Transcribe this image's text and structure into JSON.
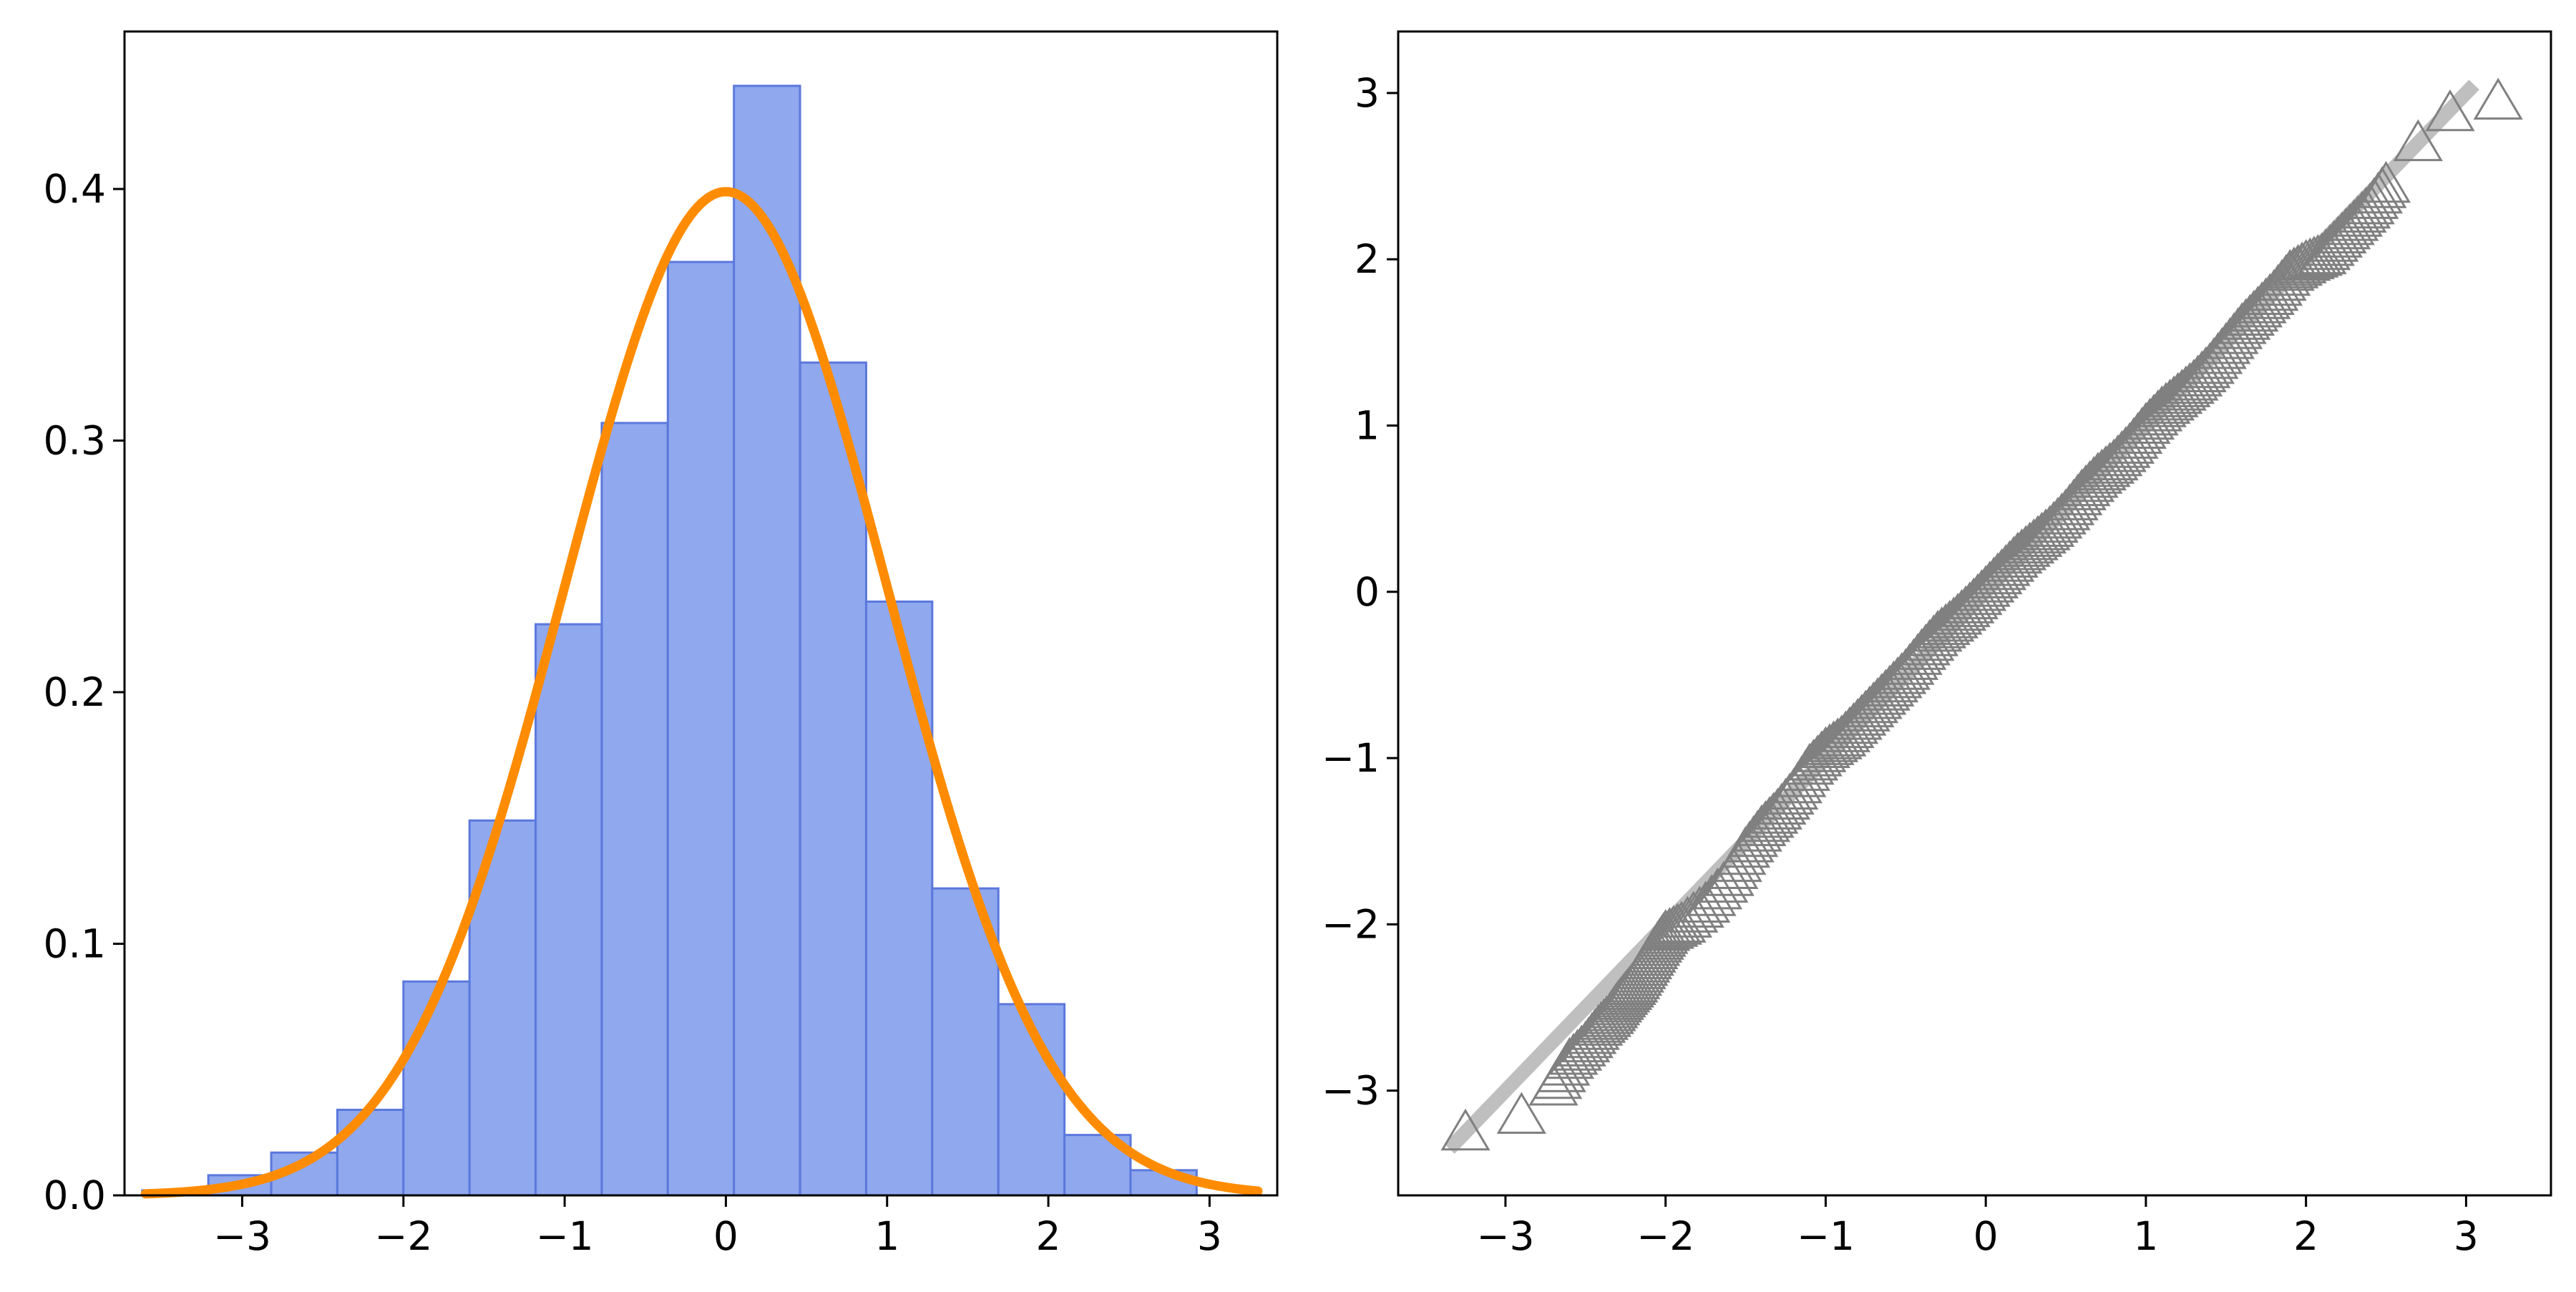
{
  "chart_data": [
    {
      "type": "bar",
      "title": "",
      "xlabel": "",
      "ylabel": "",
      "xlim": [
        -3.73,
        3.42
      ],
      "ylim": [
        0,
        0.4626
      ],
      "xticks": [
        -3,
        -2,
        -1,
        0,
        1,
        2,
        3
      ],
      "yticks": [
        0.0,
        0.1,
        0.2,
        0.3,
        0.4
      ],
      "xtick_labels": [
        "−3",
        "−2",
        "−1",
        "0",
        "1",
        "2",
        "3"
      ],
      "ytick_labels": [
        "0.0",
        "0.1",
        "0.2",
        "0.3",
        "0.4"
      ],
      "bin_edges": [
        -3.62,
        -3.21,
        -2.82,
        -2.41,
        -2.0,
        -1.59,
        -1.18,
        -0.77,
        -0.36,
        0.05,
        0.46,
        0.87,
        1.28,
        1.69,
        2.1,
        2.51,
        2.92
      ],
      "values": [
        0.002,
        0.008,
        0.017,
        0.034,
        0.085,
        0.149,
        0.227,
        0.307,
        0.371,
        0.441,
        0.331,
        0.236,
        0.122,
        0.076,
        0.024,
        0.01
      ],
      "bar_color": "#8fa8ee",
      "bar_edge_color": "#5b78dc",
      "curve": {
        "type": "line",
        "description_of_curve": "standard normal pdf",
        "x_range": [
          -3.6,
          3.3
        ],
        "color": "#ff8c00"
      },
      "grid": false,
      "legend": null
    },
    {
      "type": "scatter",
      "title": "",
      "xlabel": "",
      "ylabel": "",
      "xlim": [
        -3.67,
        3.53
      ],
      "ylim": [
        -3.63,
        3.37
      ],
      "xticks": [
        -3,
        -2,
        -1,
        0,
        1,
        2,
        3
      ],
      "yticks": [
        -3,
        -2,
        -1,
        0,
        1,
        2,
        3
      ],
      "xtick_labels": [
        "−3",
        "−2",
        "−1",
        "0",
        "1",
        "2",
        "3"
      ],
      "ytick_labels": [
        "−3",
        "−2",
        "−1",
        "0",
        "1",
        "2",
        "3"
      ],
      "marker": "triangle-open",
      "marker_color": "#808080",
      "reference_line": {
        "x": [
          -3.35,
          3.05
        ],
        "y": [
          -3.35,
          3.05
        ],
        "color": "#bfbfbf"
      },
      "points": [
        [
          -3.25,
          -3.25
        ],
        [
          -2.9,
          -3.15
        ],
        [
          -2.7,
          -2.98
        ],
        [
          -2.6,
          -2.82
        ],
        [
          -2.5,
          -2.72
        ],
        [
          -2.42,
          -2.62
        ],
        [
          -2.35,
          -2.55
        ],
        [
          -2.3,
          -2.48
        ],
        [
          -2.25,
          -2.42
        ],
        [
          -2.2,
          -2.36
        ],
        [
          -2.15,
          -2.28
        ],
        [
          -2.1,
          -2.2
        ],
        [
          -2.05,
          -2.12
        ],
        [
          -2.0,
          -2.05
        ],
        [
          -1.9,
          -2.0
        ],
        [
          -1.75,
          -1.88
        ],
        [
          -1.6,
          -1.72
        ],
        [
          -1.5,
          -1.55
        ],
        [
          -1.4,
          -1.42
        ],
        [
          -1.3,
          -1.32
        ],
        [
          -1.2,
          -1.2
        ],
        [
          -1.1,
          -1.05
        ],
        [
          -1.0,
          -0.95
        ],
        [
          -0.9,
          -0.88
        ],
        [
          -0.8,
          -0.78
        ],
        [
          -0.7,
          -0.68
        ],
        [
          -0.6,
          -0.58
        ],
        [
          -0.5,
          -0.48
        ],
        [
          -0.4,
          -0.36
        ],
        [
          -0.3,
          -0.25
        ],
        [
          -0.2,
          -0.17
        ],
        [
          -0.1,
          -0.08
        ],
        [
          0.0,
          0.02
        ],
        [
          0.1,
          0.12
        ],
        [
          0.2,
          0.22
        ],
        [
          0.3,
          0.3
        ],
        [
          0.4,
          0.38
        ],
        [
          0.5,
          0.48
        ],
        [
          0.6,
          0.6
        ],
        [
          0.7,
          0.7
        ],
        [
          0.8,
          0.78
        ],
        [
          0.9,
          0.88
        ],
        [
          1.0,
          1.0
        ],
        [
          1.1,
          1.1
        ],
        [
          1.2,
          1.18
        ],
        [
          1.3,
          1.26
        ],
        [
          1.4,
          1.36
        ],
        [
          1.5,
          1.48
        ],
        [
          1.6,
          1.6
        ],
        [
          1.7,
          1.7
        ],
        [
          1.8,
          1.8
        ],
        [
          1.9,
          1.92
        ],
        [
          2.0,
          1.98
        ],
        [
          2.1,
          2.02
        ],
        [
          2.2,
          2.12
        ],
        [
          2.3,
          2.22
        ],
        [
          2.4,
          2.32
        ],
        [
          2.5,
          2.45
        ],
        [
          2.7,
          2.7
        ],
        [
          2.9,
          2.88
        ],
        [
          3.2,
          2.95
        ]
      ],
      "grid": false,
      "legend": null
    }
  ]
}
